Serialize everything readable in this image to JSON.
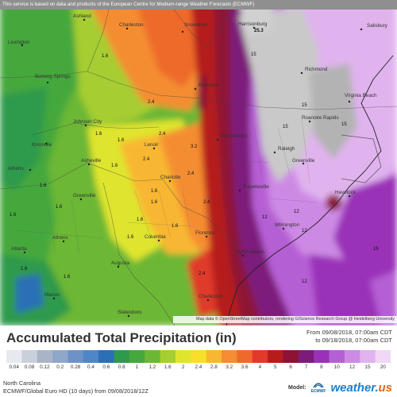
{
  "disclaimer": "This service is based on data and products of the European Centre for Medium-range Weather Forecasts (ECMWF)",
  "attribution": "Map data © OpenStreetMap contributors, rendering GIScience Research Group @ Heidelberg University",
  "title": "Accumulated Total Precipitation (in)",
  "dates": {
    "from": "From 09/08/2018, 07:00am CDT",
    "to": "to 09/18/2018, 07:00am CDT"
  },
  "footer": {
    "region": "North Carolina",
    "model_run": "ECMWF/Global Euro HD (10 days) from 09/08/2018/12Z"
  },
  "model_label": "Model:",
  "brand": {
    "ecmwf": "ECMWF",
    "site_main": "weather.",
    "site_tld": "us"
  },
  "legend": {
    "ticks": [
      "0.04",
      "0.08",
      "0.12",
      "0.2",
      "0.28",
      "0.4",
      "0.6",
      "0.8",
      "1",
      "1.2",
      "1.6",
      "2",
      "2.4",
      "2.8",
      "3.2",
      "3.6",
      "4",
      "5",
      "6",
      "7",
      "8",
      "10",
      "12",
      "15",
      "20"
    ],
    "colors": [
      "#e6e9ee",
      "#c9d0dc",
      "#a9b5c6",
      "#8fa8c9",
      "#6d92c6",
      "#4f86c8",
      "#2b6fb6",
      "#2f9a4b",
      "#45a83c",
      "#6cb735",
      "#a6cd32",
      "#dfe52e",
      "#f7df2a",
      "#f8b730",
      "#f48d33",
      "#ee6a2c",
      "#e03a2a",
      "#b51d1d",
      "#8e1235",
      "#7d1b7a",
      "#9a32b8",
      "#b55fd4",
      "#cd8ae4",
      "#e0b3ee",
      "#f0d8f6"
    ]
  },
  "map_labels": [
    {
      "name": "Ashland"
    },
    {
      "name": "Charleston"
    },
    {
      "name": "Snowshoe"
    },
    {
      "name": "Harrisonburg"
    },
    {
      "name": "Salisbury"
    },
    {
      "name": "Lexington"
    },
    {
      "name": "Burning Springs"
    },
    {
      "name": "Richmond"
    },
    {
      "name": "Roanoke"
    },
    {
      "name": "Virginia Beach"
    },
    {
      "name": "Roanoke Rapids"
    },
    {
      "name": "Johnson City"
    },
    {
      "name": "Knoxville"
    },
    {
      "name": "Lenoir"
    },
    {
      "name": "Greensboro"
    },
    {
      "name": "Raleigh"
    },
    {
      "name": "Greenville"
    },
    {
      "name": "Asheville"
    },
    {
      "name": "Athens"
    },
    {
      "name": "Charlotte"
    },
    {
      "name": "Fayetteville"
    },
    {
      "name": "Havelock"
    },
    {
      "name": "Greenville"
    },
    {
      "name": "Athens"
    },
    {
      "name": "Columbia"
    },
    {
      "name": "Florence"
    },
    {
      "name": "Wilmington"
    },
    {
      "name": "Atlanta"
    },
    {
      "name": "Myrtle Beach"
    },
    {
      "name": "Augusta"
    },
    {
      "name": "Macon"
    },
    {
      "name": "Charleston"
    },
    {
      "name": "Statesboro"
    }
  ],
  "map_values": [
    "25.3",
    "1.6",
    "2.4",
    "2.4",
    "3.2",
    "1.6",
    "1.6",
    "2.4",
    "2.4",
    "2.4",
    "1.6",
    "15",
    "15",
    "15",
    "15",
    "12",
    "12",
    "12",
    "12",
    "15",
    "1.6",
    "1.6",
    "1.6",
    "1.6",
    "1.6",
    "1.6",
    "1.6",
    "2.4",
    "1.6",
    "1.6",
    "1.6"
  ]
}
